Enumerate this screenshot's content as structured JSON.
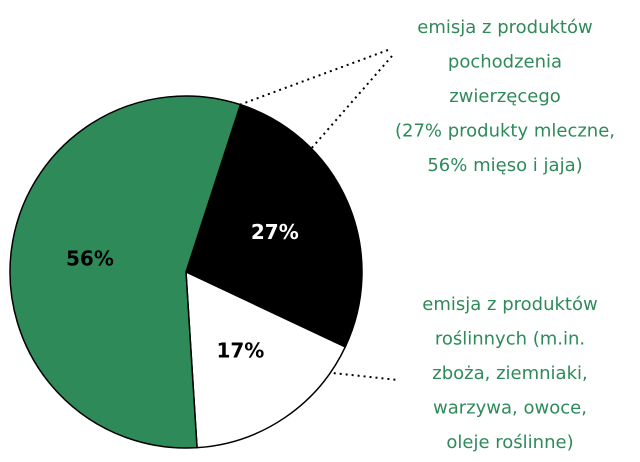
{
  "chart_data": {
    "type": "pie",
    "values": [
      27,
      17,
      56
    ],
    "value_labels": [
      "27%",
      "17%",
      "56%"
    ],
    "colors": [
      "#000000",
      "#ffffff",
      "#2f8a5a"
    ],
    "label_colors": [
      "#ffffff",
      "#000000",
      "#000000"
    ],
    "annotations": [
      [
        "emisja z produktów",
        "pochodzenia",
        "zwierzęcego",
        "(27% produkty mleczne,",
        "56% mięso i jaja)"
      ],
      [
        "emisja z produktów",
        "roślinnych (m.in.",
        "zboża, ziemniaki,",
        "warzywa, owoce,",
        "oleje roślinne)"
      ]
    ]
  }
}
